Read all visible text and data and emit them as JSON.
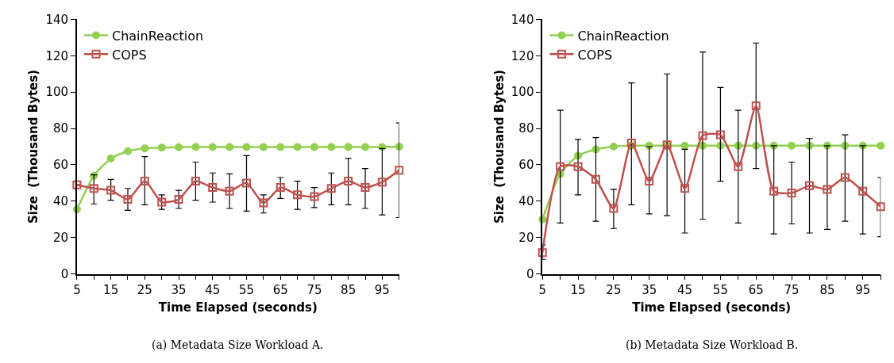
{
  "chart_data": [
    {
      "type": "line",
      "xlabel": "Time Elapsed (seconds)",
      "ylabel": "Size  (Thousand Bytes)",
      "annotations": [
        "(a) Metadata Size Workload A."
      ],
      "x": [
        5,
        10,
        15,
        20,
        25,
        30,
        35,
        40,
        45,
        50,
        55,
        60,
        65,
        70,
        75,
        80,
        85,
        90,
        95,
        100
      ],
      "xlim": [
        5,
        100
      ],
      "xticks": [
        5,
        {
          "value": 10,
          "label": null
        },
        15,
        {
          "value": 20,
          "label": null
        },
        25,
        {
          "value": 30,
          "label": null
        },
        35,
        {
          "value": 40,
          "label": null
        },
        45,
        {
          "value": 50,
          "label": null
        },
        55,
        {
          "value": 60,
          "label": null
        },
        65,
        {
          "value": 70,
          "label": null
        },
        75,
        {
          "value": 80,
          "label": null
        },
        85,
        {
          "value": 90,
          "label": null
        },
        95,
        {
          "value": 100,
          "label": null
        }
      ],
      "ylim": [
        0,
        140
      ],
      "yticks": [
        0,
        20,
        40,
        60,
        80,
        100,
        120,
        140
      ],
      "legend": "top left",
      "series": [
        {
          "name": "ChainReaction",
          "color": "#92d050",
          "marker": "circle",
          "values": [
            35.5,
            54,
            63.5,
            67.5,
            69,
            69.5,
            69.7,
            69.8,
            69.8,
            69.8,
            69.8,
            69.8,
            69.8,
            69.8,
            69.8,
            69.8,
            69.8,
            69.8,
            69.8,
            70
          ]
        },
        {
          "name": "COPS",
          "color": "#c0504d",
          "marker": "square",
          "values": [
            49,
            47,
            46,
            41,
            51,
            39.5,
            41,
            51,
            47.5,
            45.5,
            50,
            39,
            47.5,
            43.5,
            42.5,
            47,
            51,
            47.5,
            50.5,
            57
          ],
          "errors": [
            null,
            [
              38.5,
              54.5
            ],
            [
              40.5,
              52
            ],
            [
              35,
              47
            ],
            [
              38,
              64.5
            ],
            [
              35.5,
              43.5
            ],
            [
              36,
              46
            ],
            [
              40.5,
              61.5
            ],
            [
              39.5,
              55.5
            ],
            [
              36,
              55
            ],
            [
              34.5,
              65
            ],
            [
              33.5,
              43.5
            ],
            [
              41.5,
              53
            ],
            [
              35.5,
              51
            ],
            [
              36.5,
              47.5
            ],
            [
              38,
              55.5
            ],
            [
              38,
              63.5
            ],
            [
              36,
              58
            ],
            [
              32.5,
              69
            ],
            [
              31,
              83
            ]
          ]
        }
      ]
    },
    {
      "type": "line",
      "xlabel": "Time Elapsed (seconds)",
      "ylabel": "Size  (Thousand Bytes)",
      "annotations": [
        "(b) Metadata Size Workload B."
      ],
      "x": [
        5,
        10,
        15,
        20,
        25,
        30,
        35,
        40,
        45,
        50,
        55,
        60,
        65,
        70,
        75,
        80,
        85,
        90,
        95,
        100
      ],
      "xlim": [
        5,
        100
      ],
      "xticks": [
        5,
        {
          "value": 10,
          "label": null
        },
        15,
        {
          "value": 20,
          "label": null
        },
        25,
        {
          "value": 30,
          "label": null
        },
        35,
        {
          "value": 40,
          "label": null
        },
        45,
        {
          "value": 50,
          "label": null
        },
        55,
        {
          "value": 60,
          "label": null
        },
        65,
        {
          "value": 70,
          "label": null
        },
        75,
        {
          "value": 80,
          "label": null
        },
        85,
        {
          "value": 90,
          "label": null
        },
        95,
        {
          "value": 100,
          "label": null
        }
      ],
      "ylim": [
        0,
        140
      ],
      "yticks": [
        0,
        20,
        40,
        60,
        80,
        100,
        120,
        140
      ],
      "legend": "top left",
      "series": [
        {
          "name": "ChainReaction",
          "color": "#92d050",
          "marker": "circle",
          "values": [
            30,
            55,
            65,
            68.5,
            70,
            70.5,
            70.5,
            70.5,
            70.5,
            70.5,
            70.5,
            70.5,
            70.5,
            70.5,
            70.5,
            70.5,
            70.5,
            70.5,
            70.5,
            70.5
          ]
        },
        {
          "name": "COPS",
          "color": "#c0504d",
          "marker": "square",
          "values": [
            11.7,
            59,
            59,
            52,
            36,
            72,
            51,
            71,
            47,
            76,
            76.5,
            59,
            92.5,
            45.5,
            44.5,
            48.5,
            46.5,
            53,
            45.5,
            37
          ],
          "errors": [
            [
              8,
              16
            ],
            [
              28,
              90
            ],
            [
              43.5,
              74
            ],
            [
              29,
              75
            ],
            [
              25,
              46.5
            ],
            [
              38,
              105
            ],
            [
              33,
              70
            ],
            [
              32,
              110
            ],
            [
              22.5,
              68.5
            ],
            [
              30,
              122
            ],
            [
              51,
              102.5
            ],
            [
              28,
              90
            ],
            [
              58,
              127
            ],
            [
              22,
              70.5
            ],
            [
              27.5,
              61.5
            ],
            [
              22.5,
              74.5
            ],
            [
              24.5,
              70.5
            ],
            [
              29,
              76.5
            ],
            [
              22,
              70.5
            ],
            [
              20.5,
              53
            ]
          ]
        }
      ]
    }
  ]
}
